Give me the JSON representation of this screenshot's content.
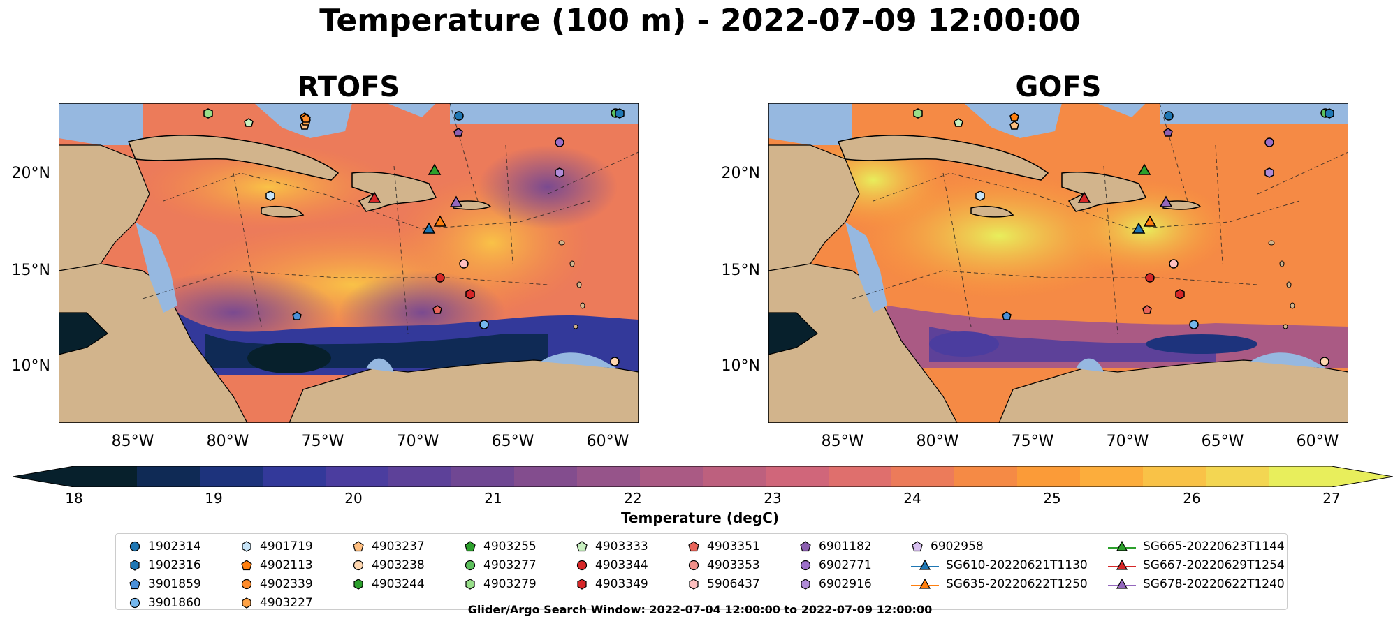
{
  "figure": {
    "suptitle": "Temperature (100 m) - 2022-07-09 12:00:00",
    "footer": "Glider/Argo Search Window: 2022-07-04 12:00:00 to 2022-07-09 12:00:00"
  },
  "maps": [
    {
      "title": "RTOFS"
    },
    {
      "title": "GOFS"
    }
  ],
  "axes": {
    "y_ticks": [
      "20°N",
      "15°N",
      "10°N"
    ],
    "x_ticks": [
      "85°W",
      "80°W",
      "75°W",
      "70°W",
      "65°W",
      "60°W"
    ]
  },
  "colorbar": {
    "label": "Temperature (degC)",
    "ticks": [
      "18",
      "19",
      "20",
      "21",
      "22",
      "23",
      "24",
      "25",
      "26",
      "27"
    ],
    "min": 18,
    "max": 27,
    "extend": "both",
    "colors": [
      "#07202c",
      "#0f2a55",
      "#1d337c",
      "#33399a",
      "#4b3d9f",
      "#5d4199",
      "#704793",
      "#834d8e",
      "#96548a",
      "#aa5a84",
      "#bd607e",
      "#d0667a",
      "#df6f6d",
      "#ec7b5a",
      "#f58a45",
      "#fb9b38",
      "#fcad3c",
      "#f9c247",
      "#f3d652",
      "#e8ee5c"
    ]
  },
  "legend": {
    "columns": [
      [
        {
          "label": "1902314",
          "marker": "circle",
          "color": "#1f77b4"
        },
        {
          "label": "1902316",
          "marker": "hexagon",
          "color": "#1f77b4"
        },
        {
          "label": "3901859",
          "marker": "pentagon",
          "color": "#4a90d9"
        },
        {
          "label": "3901860",
          "marker": "circle",
          "color": "#74b6ec"
        }
      ],
      [
        {
          "label": "4901719",
          "marker": "hexagon",
          "color": "#c7e4f7"
        },
        {
          "label": "4902113",
          "marker": "pentagon",
          "color": "#ff7f0e"
        },
        {
          "label": "4902339",
          "marker": "circle",
          "color": "#ff8c2a"
        },
        {
          "label": "4903227",
          "marker": "hexagon",
          "color": "#ffa245"
        }
      ],
      [
        {
          "label": "4903237",
          "marker": "pentagon",
          "color": "#ffbf80"
        },
        {
          "label": "4903238",
          "marker": "circle",
          "color": "#ffd7b0"
        },
        {
          "label": "4903244",
          "marker": "hexagon",
          "color": "#2ca02c"
        }
      ],
      [
        {
          "label": "4903255",
          "marker": "pentagon",
          "color": "#2ca02c"
        },
        {
          "label": "4903277",
          "marker": "circle",
          "color": "#5cbf5c"
        },
        {
          "label": "4903279",
          "marker": "hexagon",
          "color": "#98df8a"
        }
      ],
      [
        {
          "label": "4903333",
          "marker": "pentagon",
          "color": "#c8f0c0"
        },
        {
          "label": "4903344",
          "marker": "circle",
          "color": "#d62728"
        },
        {
          "label": "4903349",
          "marker": "hexagon",
          "color": "#d62728"
        }
      ],
      [
        {
          "label": "4903351",
          "marker": "pentagon",
          "color": "#e8645a"
        },
        {
          "label": "4903353",
          "marker": "circle",
          "color": "#f0908a"
        },
        {
          "label": "5906437",
          "marker": "hexagon",
          "color": "#ffc0c0"
        }
      ],
      [
        {
          "label": "6901182",
          "marker": "pentagon",
          "color": "#8c5fb0"
        },
        {
          "label": "6902771",
          "marker": "circle",
          "color": "#9c6fc8"
        },
        {
          "label": "6902916",
          "marker": "hexagon",
          "color": "#b08cd8"
        }
      ],
      [
        {
          "label": "6902958",
          "marker": "pentagon",
          "color": "#d8c0f0"
        },
        {
          "label": "SG610-20220621T1130",
          "marker": "triangle",
          "color": "#1f77b4"
        },
        {
          "label": "SG635-20220622T1250",
          "marker": "triangle",
          "color": "#ff7f0e"
        }
      ],
      [
        {
          "label": "SG665-20220623T1144",
          "marker": "triangle",
          "color": "#2ca02c"
        },
        {
          "label": "SG667-20220629T1254",
          "marker": "triangle",
          "color": "#d62728"
        },
        {
          "label": "SG678-20220622T1240",
          "marker": "triangle",
          "color": "#9467bd"
        }
      ]
    ]
  }
}
